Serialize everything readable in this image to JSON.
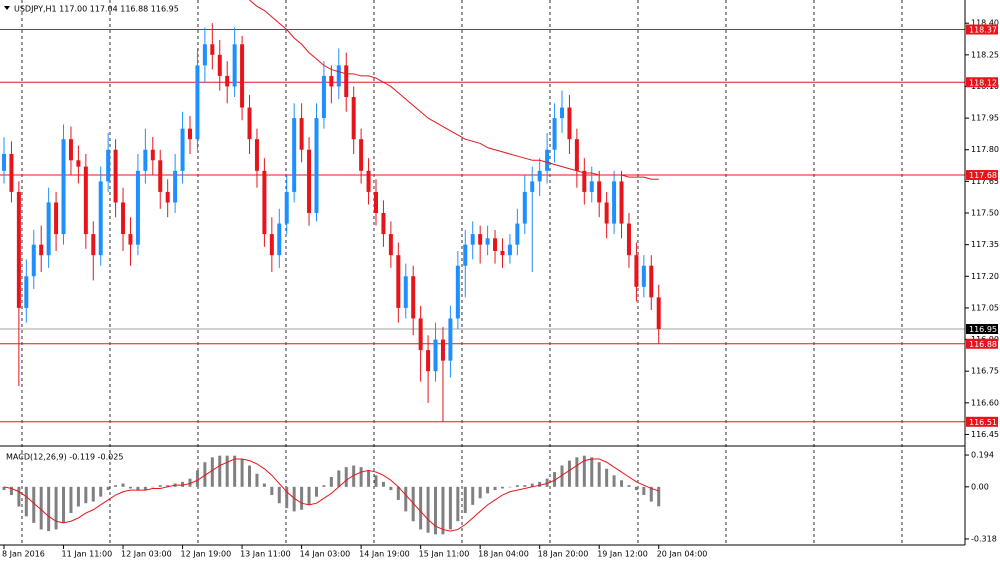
{
  "chart_data": {
    "type": "candlestick",
    "title": "USDJPY,H1  117.00 117.04 116.88 116.95",
    "up_color": "#1e8fff",
    "down_color": "#e8141b",
    "ylim": [
      116.4,
      118.51
    ],
    "yticks": [
      {
        "value": 118.4,
        "label": "118.40"
      },
      118.25,
      {
        "value": 118.1,
        "label": "118.10"
      },
      117.95,
      {
        "value": 117.8,
        "label": "117.80"
      },
      117.65,
      {
        "value": 117.5,
        "label": "117.50"
      },
      117.35,
      {
        "value": 117.2,
        "label": "117.20"
      },
      117.05,
      {
        "value": 116.9,
        "label": "116.90"
      },
      116.75,
      {
        "value": 116.6,
        "label": "116.60"
      },
      116.45
    ],
    "categories": [
      "8 Jan 2016",
      null,
      null,
      null,
      null,
      null,
      null,
      null,
      "11 Jan 11:00",
      null,
      null,
      null,
      null,
      null,
      null,
      null,
      "12 Jan 03:00",
      null,
      null,
      null,
      null,
      null,
      null,
      null,
      "12 Jan 19:00",
      null,
      null,
      null,
      null,
      null,
      null,
      null,
      "13 Jan 11:00",
      null,
      null,
      null,
      null,
      null,
      null,
      null,
      "14 Jan 03:00",
      null,
      null,
      null,
      null,
      null,
      null,
      null,
      "14 Jan 19:00",
      null,
      null,
      null,
      null,
      null,
      null,
      null,
      "15 Jan 11:00",
      null,
      null,
      null,
      null,
      null,
      null,
      null,
      "18 Jan 04:00",
      null,
      null,
      null,
      null,
      null,
      null,
      null,
      "18 Jan 20:00",
      null,
      null,
      null,
      null,
      null,
      null,
      null,
      "19 Jan 12:00",
      null,
      null,
      null,
      null,
      null,
      null,
      null,
      "20 Jan 04:00"
    ],
    "ohlc": [
      [
        117.7,
        117.86,
        117.64,
        117.78
      ],
      [
        117.78,
        117.84,
        117.55,
        117.6
      ],
      [
        117.6,
        117.65,
        116.68,
        117.05
      ],
      [
        117.05,
        117.28,
        116.98,
        117.2
      ],
      [
        117.2,
        117.42,
        117.14,
        117.35
      ],
      [
        117.35,
        117.44,
        117.22,
        117.3
      ],
      [
        117.3,
        117.62,
        117.24,
        117.55
      ],
      [
        117.55,
        117.6,
        117.32,
        117.4
      ],
      [
        117.4,
        117.92,
        117.35,
        117.85
      ],
      [
        117.85,
        117.91,
        117.68,
        117.75
      ],
      [
        117.75,
        117.82,
        117.64,
        117.72
      ],
      [
        117.72,
        117.78,
        117.33,
        117.4
      ],
      [
        117.4,
        117.46,
        117.18,
        117.3
      ],
      [
        117.3,
        117.72,
        117.25,
        117.65
      ],
      [
        117.65,
        117.88,
        117.6,
        117.8
      ],
      [
        117.8,
        117.85,
        117.48,
        117.55
      ],
      [
        117.55,
        117.62,
        117.32,
        117.4
      ],
      [
        117.4,
        117.48,
        117.25,
        117.35
      ],
      [
        117.35,
        117.78,
        117.3,
        117.7
      ],
      [
        117.7,
        117.9,
        117.64,
        117.8
      ],
      [
        117.8,
        117.86,
        117.68,
        117.75
      ],
      [
        117.75,
        117.8,
        117.52,
        117.6
      ],
      [
        117.6,
        117.66,
        117.48,
        117.55
      ],
      [
        117.55,
        117.78,
        117.5,
        117.7
      ],
      [
        117.7,
        117.98,
        117.64,
        117.9
      ],
      [
        117.9,
        117.96,
        117.78,
        117.85
      ],
      [
        117.85,
        118.28,
        117.8,
        118.2
      ],
      [
        118.2,
        118.38,
        118.12,
        118.3
      ],
      [
        118.3,
        118.4,
        118.18,
        118.25
      ],
      [
        118.25,
        118.32,
        118.08,
        118.15
      ],
      [
        118.15,
        118.22,
        118.02,
        118.1
      ],
      [
        118.1,
        118.38,
        118.05,
        118.3
      ],
      [
        118.3,
        118.34,
        117.94,
        118.0
      ],
      [
        118.0,
        118.06,
        117.78,
        117.85
      ],
      [
        117.85,
        117.9,
        117.62,
        117.7
      ],
      [
        117.7,
        117.76,
        117.34,
        117.4
      ],
      [
        117.4,
        117.48,
        117.22,
        117.3
      ],
      [
        117.3,
        117.52,
        117.24,
        117.45
      ],
      [
        117.45,
        117.68,
        117.4,
        117.6
      ],
      [
        117.6,
        118.02,
        117.55,
        117.95
      ],
      [
        117.95,
        118.02,
        117.74,
        117.8
      ],
      [
        117.8,
        117.86,
        117.44,
        117.5
      ],
      [
        117.5,
        118.02,
        117.46,
        117.95
      ],
      [
        117.95,
        118.22,
        117.9,
        118.15
      ],
      [
        118.15,
        118.2,
        118.02,
        118.1
      ],
      [
        118.1,
        118.28,
        118.04,
        118.2
      ],
      [
        118.2,
        118.26,
        117.98,
        118.05
      ],
      [
        118.05,
        118.1,
        117.78,
        117.85
      ],
      [
        117.85,
        117.9,
        117.64,
        117.7
      ],
      [
        117.7,
        117.76,
        117.54,
        117.6
      ],
      [
        117.6,
        117.66,
        117.44,
        117.5
      ],
      [
        117.5,
        117.56,
        117.34,
        117.4
      ],
      [
        117.4,
        117.46,
        117.24,
        117.3
      ],
      [
        117.3,
        117.36,
        116.98,
        117.05
      ],
      [
        117.05,
        117.26,
        117.0,
        117.2
      ],
      [
        117.2,
        117.25,
        116.92,
        117.0
      ],
      [
        117.0,
        117.06,
        116.7,
        116.85
      ],
      [
        116.85,
        116.92,
        116.6,
        116.75
      ],
      [
        116.75,
        116.98,
        116.7,
        116.9
      ],
      [
        116.9,
        116.96,
        116.51,
        116.8
      ],
      [
        116.8,
        117.06,
        116.72,
        117.0
      ],
      [
        117.0,
        117.32,
        116.95,
        117.25
      ],
      [
        117.25,
        117.42,
        117.1,
        117.35
      ],
      [
        117.35,
        117.46,
        117.28,
        117.4
      ],
      [
        117.4,
        117.44,
        117.26,
        117.35
      ],
      [
        117.35,
        117.44,
        117.3,
        117.38
      ],
      [
        117.38,
        117.42,
        117.26,
        117.32
      ],
      [
        117.32,
        117.38,
        117.24,
        117.3
      ],
      [
        117.3,
        117.4,
        117.26,
        117.35
      ],
      [
        117.35,
        117.52,
        117.3,
        117.45
      ],
      [
        117.45,
        117.68,
        117.4,
        117.6
      ],
      [
        117.6,
        117.72,
        117.22,
        117.65
      ],
      [
        117.65,
        117.76,
        117.58,
        117.7
      ],
      [
        117.7,
        117.88,
        117.64,
        117.8
      ],
      [
        117.8,
        118.02,
        117.74,
        117.95
      ],
      [
        117.95,
        118.08,
        117.88,
        118.0
      ],
      [
        118.0,
        118.06,
        117.78,
        117.85
      ],
      [
        117.85,
        117.9,
        117.62,
        117.7
      ],
      [
        117.7,
        117.76,
        117.54,
        117.6
      ],
      [
        117.6,
        117.72,
        117.55,
        117.65
      ],
      [
        117.65,
        117.7,
        117.48,
        117.55
      ],
      [
        117.55,
        117.6,
        117.38,
        117.45
      ],
      [
        117.45,
        117.7,
        117.4,
        117.65
      ],
      [
        117.65,
        117.7,
        117.38,
        117.45
      ],
      [
        117.45,
        117.5,
        117.24,
        117.3
      ],
      [
        117.3,
        117.36,
        117.08,
        117.15
      ],
      [
        117.15,
        117.3,
        117.1,
        117.25
      ],
      [
        117.25,
        117.3,
        117.04,
        117.1
      ],
      [
        117.1,
        117.16,
        116.88,
        116.95
      ]
    ],
    "moving_average": {
      "color": "#e8141b",
      "values": [
        null,
        null,
        null,
        null,
        null,
        null,
        null,
        null,
        null,
        null,
        null,
        null,
        null,
        null,
        null,
        null,
        null,
        null,
        null,
        null,
        null,
        null,
        null,
        null,
        null,
        null,
        null,
        null,
        null,
        null,
        null,
        null,
        null,
        118.51,
        118.48,
        118.46,
        118.43,
        118.4,
        118.37,
        118.33,
        118.3,
        118.26,
        118.23,
        118.2,
        118.18,
        118.17,
        118.16,
        118.16,
        118.15,
        118.15,
        118.14,
        118.12,
        118.1,
        118.07,
        118.04,
        118.01,
        117.98,
        117.95,
        117.93,
        117.91,
        117.89,
        117.87,
        117.85,
        117.84,
        117.83,
        117.81,
        117.8,
        117.79,
        117.78,
        117.77,
        117.76,
        117.75,
        117.75,
        117.74,
        117.73,
        117.72,
        117.71,
        117.7,
        117.69,
        117.69,
        117.68,
        117.68,
        117.68,
        117.68,
        117.67,
        117.67,
        117.67,
        117.66,
        117.66
      ]
    },
    "levels": [
      118.37,
      118.12,
      117.68,
      116.88,
      116.51
    ],
    "level_color": "#e8141b",
    "current_price": 116.95,
    "current_price_color": "#a0a0a0",
    "macd": {
      "title": "MACD(12,26,9) -0.119 -0.025",
      "ylim": [
        -0.355,
        0.243
      ],
      "yticks": [
        0.194,
        {
          "value": 0,
          "label": "0.00"
        },
        -0.318
      ],
      "histogram_color": "#808080",
      "signal_color": "#e8141b",
      "histogram": [
        -0.02,
        -0.05,
        -0.12,
        -0.18,
        -0.22,
        -0.26,
        -0.27,
        -0.26,
        -0.22,
        -0.16,
        -0.12,
        -0.1,
        -0.09,
        -0.06,
        -0.02,
        0.01,
        0.02,
        -0.01,
        -0.02,
        -0.02,
        0.0,
        0.01,
        0.01,
        0.02,
        0.03,
        0.05,
        0.1,
        0.15,
        0.18,
        0.19,
        0.19,
        0.19,
        0.17,
        0.13,
        0.08,
        0.02,
        -0.05,
        -0.1,
        -0.13,
        -0.15,
        -0.14,
        -0.11,
        -0.06,
        0.01,
        0.06,
        0.1,
        0.12,
        0.13,
        0.12,
        0.1,
        0.07,
        0.03,
        -0.02,
        -0.08,
        -0.15,
        -0.21,
        -0.26,
        -0.28,
        -0.29,
        -0.29,
        -0.26,
        -0.21,
        -0.16,
        -0.11,
        -0.07,
        -0.04,
        -0.02,
        -0.01,
        0.0,
        0.01,
        0.01,
        0.02,
        0.03,
        0.05,
        0.09,
        0.13,
        0.16,
        0.18,
        0.19,
        0.18,
        0.15,
        0.11,
        0.07,
        0.04,
        0.01,
        -0.02,
        -0.05,
        -0.09,
        -0.119
      ],
      "signal": [
        0.0,
        -0.01,
        -0.03,
        -0.06,
        -0.1,
        -0.14,
        -0.18,
        -0.21,
        -0.22,
        -0.21,
        -0.19,
        -0.16,
        -0.14,
        -0.11,
        -0.08,
        -0.05,
        -0.03,
        -0.02,
        -0.02,
        -0.02,
        -0.01,
        -0.01,
        0.0,
        0.01,
        0.01,
        0.02,
        0.04,
        0.07,
        0.1,
        0.13,
        0.15,
        0.17,
        0.17,
        0.16,
        0.14,
        0.11,
        0.07,
        0.02,
        -0.03,
        -0.07,
        -0.1,
        -0.11,
        -0.1,
        -0.07,
        -0.04,
        0.0,
        0.04,
        0.07,
        0.09,
        0.1,
        0.09,
        0.07,
        0.04,
        0.0,
        -0.05,
        -0.1,
        -0.15,
        -0.2,
        -0.24,
        -0.26,
        -0.27,
        -0.26,
        -0.23,
        -0.19,
        -0.15,
        -0.11,
        -0.08,
        -0.05,
        -0.03,
        -0.02,
        -0.01,
        0.0,
        0.01,
        0.02,
        0.04,
        0.07,
        0.1,
        0.13,
        0.16,
        0.17,
        0.17,
        0.15,
        0.12,
        0.09,
        0.06,
        0.03,
        0.01,
        -0.01,
        -0.025
      ]
    }
  }
}
